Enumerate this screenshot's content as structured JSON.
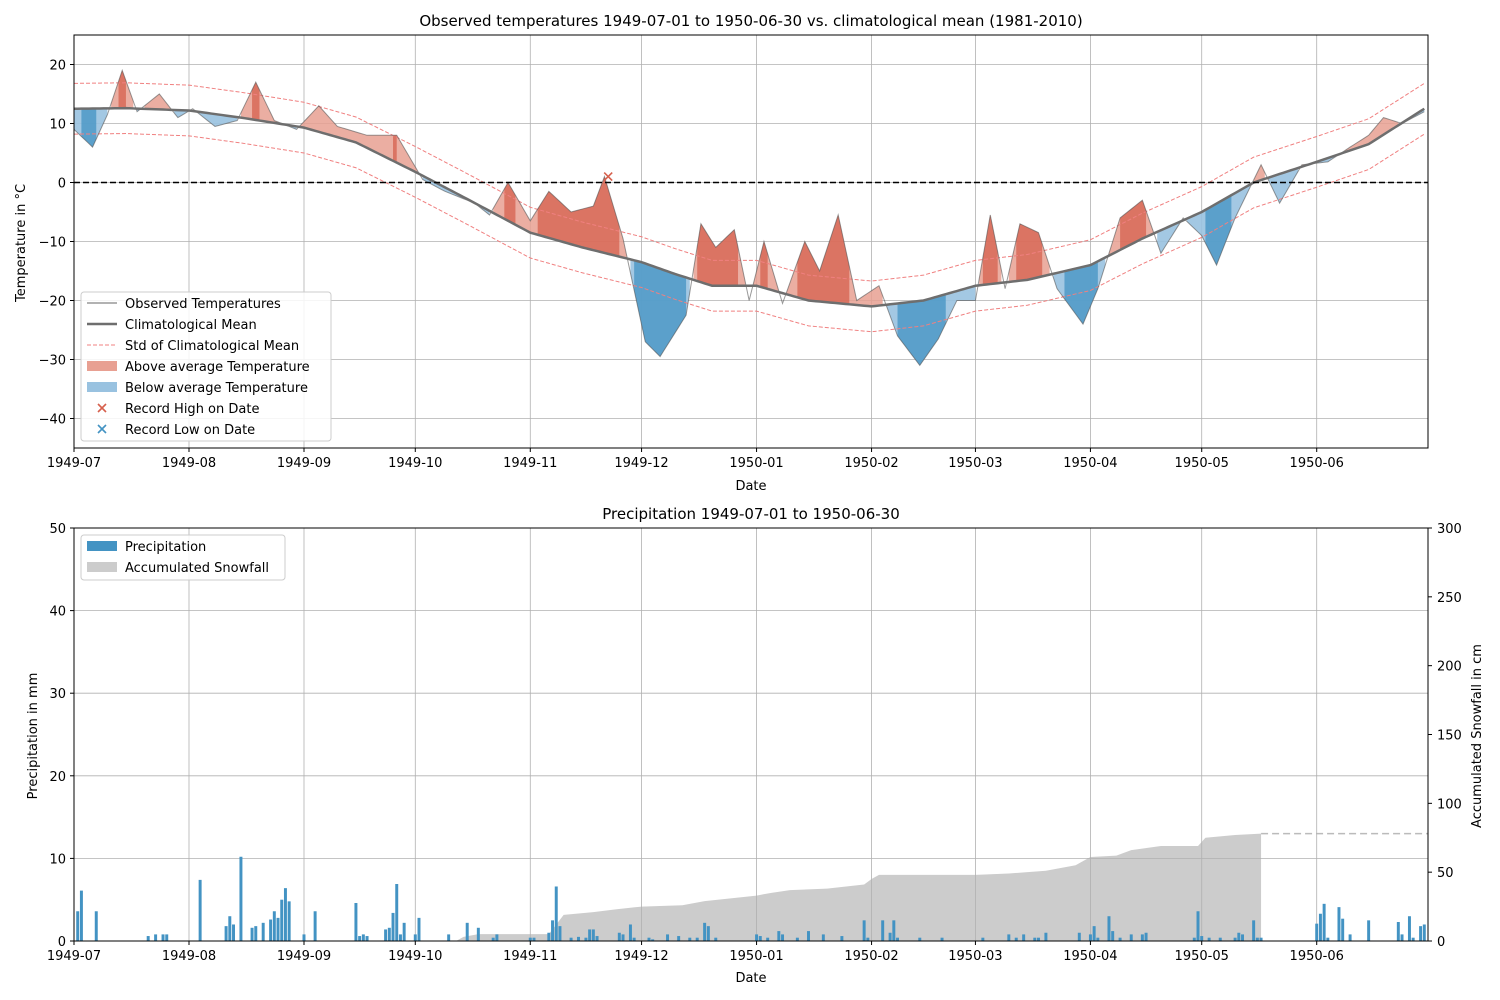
{
  "chart_data": [
    {
      "type": "area",
      "title": "Observed temperatures 1949-07-01 to 1950-06-30 vs. climatological mean (1981-2010)",
      "xlabel": "Date",
      "ylabel": "Temperature in °C",
      "xlim": [
        "1949-07-01",
        "1950-06-30"
      ],
      "ylim": [
        -45,
        25
      ],
      "x_ticks": [
        "1949-07",
        "1949-08",
        "1949-09",
        "1949-10",
        "1949-11",
        "1949-12",
        "1950-01",
        "1950-02",
        "1950-03",
        "1950-04",
        "1950-05",
        "1950-06"
      ],
      "y_ticks": [
        20,
        10,
        0,
        -10,
        -20,
        -30,
        -40
      ],
      "grid": true,
      "reference_line": 0,
      "legend_position": "lower-left",
      "legend": [
        "Observed Temperatures",
        "Climatological Mean",
        "Std of Climatological Mean",
        "Above average Temperature",
        "Below average Temperature",
        "Record High on Date",
        "Record Low on Date"
      ],
      "colors": {
        "observed": "#999999",
        "mean": "#6e6e6e",
        "std": "#f08080",
        "above": "#e8a092",
        "above_strong": "#d6604d",
        "below": "#99c2e0",
        "below_strong": "#4393c3",
        "record_high": "#d6604d",
        "record_low": "#4393c3"
      },
      "mean_points": [
        [
          "1949-07-01",
          12.5
        ],
        [
          "1949-07-15",
          12.6
        ],
        [
          "1949-08-01",
          12.2
        ],
        [
          "1949-08-15",
          11.0
        ],
        [
          "1949-09-01",
          9.3
        ],
        [
          "1949-09-15",
          6.8
        ],
        [
          "1949-10-01",
          1.8
        ],
        [
          "1949-10-15",
          -2.8
        ],
        [
          "1949-11-01",
          -8.5
        ],
        [
          "1949-11-15",
          -11.0
        ],
        [
          "1949-12-01",
          -13.5
        ],
        [
          "1949-12-10",
          -15.5
        ],
        [
          "1949-12-20",
          -17.5
        ],
        [
          "1950-01-01",
          -17.5
        ],
        [
          "1950-01-15",
          -20.0
        ],
        [
          "1950-02-01",
          -21.0
        ],
        [
          "1950-02-15",
          -20.0
        ],
        [
          "1950-03-01",
          -17.5
        ],
        [
          "1950-03-15",
          -16.5
        ],
        [
          "1950-04-01",
          -14.0
        ],
        [
          "1950-04-15",
          -9.5
        ],
        [
          "1950-05-01",
          -5.0
        ],
        [
          "1950-05-15",
          0.0
        ],
        [
          "1950-06-01",
          3.5
        ],
        [
          "1950-06-15",
          6.5
        ],
        [
          "1950-06-30",
          12.5
        ]
      ],
      "std_width": 4.3,
      "observed_points": [
        [
          "1949-07-01",
          9.0
        ],
        [
          "1949-07-06",
          6.0
        ],
        [
          "1949-07-10",
          11.5
        ],
        [
          "1949-07-14",
          19.0
        ],
        [
          "1949-07-18",
          12.0
        ],
        [
          "1949-07-24",
          15.0
        ],
        [
          "1949-07-29",
          11.0
        ],
        [
          "1949-08-02",
          12.5
        ],
        [
          "1949-08-08",
          9.5
        ],
        [
          "1949-08-14",
          10.5
        ],
        [
          "1949-08-19",
          17.0
        ],
        [
          "1949-08-24",
          10.5
        ],
        [
          "1949-08-30",
          9.0
        ],
        [
          "1949-09-05",
          13.0
        ],
        [
          "1949-09-10",
          9.5
        ],
        [
          "1949-09-18",
          8.0
        ],
        [
          "1949-09-26",
          8.0
        ],
        [
          "1949-10-03",
          0.5
        ],
        [
          "1949-10-09",
          -1.5
        ],
        [
          "1949-10-17",
          -3.5
        ],
        [
          "1949-10-21",
          -5.5
        ],
        [
          "1949-10-26",
          0.0
        ],
        [
          "1949-11-01",
          -6.5
        ],
        [
          "1949-11-06",
          -1.5
        ],
        [
          "1949-11-12",
          -5.0
        ],
        [
          "1949-11-18",
          -4.0
        ],
        [
          "1949-11-21",
          1.0
        ],
        [
          "1949-11-26",
          -9.5
        ],
        [
          "1949-12-02",
          -27.0
        ],
        [
          "1949-12-06",
          -29.5
        ],
        [
          "1949-12-13",
          -22.5
        ],
        [
          "1949-12-17",
          -7.0
        ],
        [
          "1949-12-21",
          -11.0
        ],
        [
          "1949-12-26",
          -8.0
        ],
        [
          "1949-12-30",
          -20.0
        ],
        [
          "1950-01-03",
          -10.0
        ],
        [
          "1950-01-08",
          -20.5
        ],
        [
          "1950-01-14",
          -10.0
        ],
        [
          "1950-01-18",
          -15.0
        ],
        [
          "1950-01-23",
          -5.5
        ],
        [
          "1950-01-28",
          -20.0
        ],
        [
          "1950-02-03",
          -17.5
        ],
        [
          "1950-02-08",
          -26.0
        ],
        [
          "1950-02-14",
          -31.0
        ],
        [
          "1950-02-19",
          -26.5
        ],
        [
          "1950-02-24",
          -20.0
        ],
        [
          "1950-03-01",
          -20.0
        ],
        [
          "1950-03-05",
          -5.5
        ],
        [
          "1950-03-09",
          -18.0
        ],
        [
          "1950-03-13",
          -7.0
        ],
        [
          "1950-03-18",
          -8.5
        ],
        [
          "1950-03-23",
          -18.0
        ],
        [
          "1950-03-30",
          -24.0
        ],
        [
          "1950-04-03",
          -18.0
        ],
        [
          "1950-04-09",
          -6.0
        ],
        [
          "1950-04-15",
          -3.0
        ],
        [
          "1950-04-20",
          -12.0
        ],
        [
          "1950-04-26",
          -6.0
        ],
        [
          "1950-05-01",
          -9.0
        ],
        [
          "1950-05-05",
          -14.0
        ],
        [
          "1950-05-10",
          -6.0
        ],
        [
          "1950-05-17",
          3.0
        ],
        [
          "1950-05-22",
          -3.5
        ],
        [
          "1950-05-28",
          3.0
        ],
        [
          "1950-06-04",
          3.5
        ],
        [
          "1950-06-10",
          6.0
        ],
        [
          "1950-06-15",
          8.0
        ],
        [
          "1950-06-19",
          11.0
        ],
        [
          "1950-06-24",
          10.0
        ],
        [
          "1950-06-30",
          12.0
        ]
      ],
      "record_high_points": [
        [
          "1949-11-22",
          1.0
        ]
      ],
      "record_low_points": []
    },
    {
      "type": "bar",
      "title": "Precipitation 1949-07-01 to 1950-06-30",
      "xlabel": "Date",
      "ylabel": "Precipitation in mm",
      "y2label": "Accumulated Snowfall in cm",
      "xlim": [
        "1949-07-01",
        "1950-06-30"
      ],
      "ylim": [
        0,
        50
      ],
      "y2lim": [
        0,
        300
      ],
      "x_ticks": [
        "1949-07",
        "1949-08",
        "1949-09",
        "1949-10",
        "1949-11",
        "1949-12",
        "1950-01",
        "1950-02",
        "1950-03",
        "1950-04",
        "1950-05",
        "1950-06"
      ],
      "y_ticks": [
        0,
        10,
        20,
        30,
        40,
        50
      ],
      "y2_ticks": [
        0,
        50,
        100,
        150,
        200,
        250,
        300
      ],
      "grid": true,
      "legend_position": "top-left",
      "legend": [
        "Precipitation",
        "Accumulated Snowfall"
      ],
      "colors": {
        "precipitation": "#4393c3",
        "snowfall": "#cccccc",
        "snow_dashed": "#bbbbbb"
      },
      "precipitation": [
        [
          "1949-07-02",
          3.6
        ],
        [
          "1949-07-03",
          6.1
        ],
        [
          "1949-07-07",
          3.6
        ],
        [
          "1949-07-21",
          0.6
        ],
        [
          "1949-07-23",
          0.8
        ],
        [
          "1949-07-25",
          0.8
        ],
        [
          "1949-07-26",
          0.8
        ],
        [
          "1949-08-04",
          7.4
        ],
        [
          "1949-08-11",
          1.8
        ],
        [
          "1949-08-12",
          3.0
        ],
        [
          "1949-08-13",
          2.0
        ],
        [
          "1949-08-15",
          10.2
        ],
        [
          "1949-08-18",
          1.6
        ],
        [
          "1949-08-19",
          1.8
        ],
        [
          "1949-08-21",
          2.2
        ],
        [
          "1949-08-23",
          2.6
        ],
        [
          "1949-08-24",
          3.6
        ],
        [
          "1949-08-25",
          2.8
        ],
        [
          "1949-08-26",
          5.0
        ],
        [
          "1949-08-27",
          6.4
        ],
        [
          "1949-08-28",
          4.8
        ],
        [
          "1949-09-01",
          0.8
        ],
        [
          "1949-09-04",
          3.6
        ],
        [
          "1949-09-15",
          4.6
        ],
        [
          "1949-09-16",
          0.6
        ],
        [
          "1949-09-17",
          0.8
        ],
        [
          "1949-09-18",
          0.6
        ],
        [
          "1949-09-23",
          1.4
        ],
        [
          "1949-09-24",
          1.6
        ],
        [
          "1949-09-25",
          3.4
        ],
        [
          "1949-09-26",
          6.9
        ],
        [
          "1949-09-27",
          0.8
        ],
        [
          "1949-09-28",
          2.2
        ],
        [
          "1949-10-01",
          0.8
        ],
        [
          "1949-10-02",
          2.8
        ],
        [
          "1949-10-10",
          0.8
        ],
        [
          "1949-10-15",
          2.2
        ],
        [
          "1949-10-18",
          1.6
        ],
        [
          "1949-10-22",
          0.4
        ],
        [
          "1949-10-23",
          0.8
        ],
        [
          "1949-11-01",
          0.4
        ],
        [
          "1949-11-02",
          0.4
        ],
        [
          "1949-11-06",
          1.0
        ],
        [
          "1949-11-07",
          2.5
        ],
        [
          "1949-11-08",
          6.6
        ],
        [
          "1949-11-09",
          1.8
        ],
        [
          "1949-11-12",
          0.4
        ],
        [
          "1949-11-14",
          0.5
        ],
        [
          "1949-11-16",
          0.4
        ],
        [
          "1949-11-17",
          1.4
        ],
        [
          "1949-11-18",
          1.4
        ],
        [
          "1949-11-19",
          0.6
        ],
        [
          "1949-11-25",
          1.0
        ],
        [
          "1949-11-26",
          0.8
        ],
        [
          "1949-11-28",
          2.0
        ],
        [
          "1949-11-29",
          0.4
        ],
        [
          "1949-12-03",
          0.4
        ],
        [
          "1949-12-04",
          0.2
        ],
        [
          "1949-12-08",
          0.8
        ],
        [
          "1949-12-11",
          0.6
        ],
        [
          "1949-12-14",
          0.4
        ],
        [
          "1949-12-16",
          0.4
        ],
        [
          "1949-12-18",
          2.2
        ],
        [
          "1949-12-19",
          1.8
        ],
        [
          "1949-12-21",
          0.4
        ],
        [
          "1950-01-01",
          0.8
        ],
        [
          "1950-01-02",
          0.6
        ],
        [
          "1950-01-04",
          0.4
        ],
        [
          "1950-01-07",
          1.2
        ],
        [
          "1950-01-08",
          0.8
        ],
        [
          "1950-01-12",
          0.4
        ],
        [
          "1950-01-15",
          1.2
        ],
        [
          "1950-01-19",
          0.8
        ],
        [
          "1950-01-24",
          0.6
        ],
        [
          "1950-01-30",
          2.5
        ],
        [
          "1950-01-31",
          0.4
        ],
        [
          "1950-02-04",
          2.5
        ],
        [
          "1950-02-06",
          1.0
        ],
        [
          "1950-02-07",
          2.5
        ],
        [
          "1950-02-08",
          0.4
        ],
        [
          "1950-02-14",
          0.4
        ],
        [
          "1950-02-20",
          0.4
        ],
        [
          "1950-03-03",
          0.4
        ],
        [
          "1950-03-10",
          0.8
        ],
        [
          "1950-03-12",
          0.4
        ],
        [
          "1950-03-14",
          0.8
        ],
        [
          "1950-03-17",
          0.4
        ],
        [
          "1950-03-18",
          0.4
        ],
        [
          "1950-03-20",
          1.0
        ],
        [
          "1950-03-29",
          1.0
        ],
        [
          "1950-04-01",
          0.8
        ],
        [
          "1950-04-02",
          1.8
        ],
        [
          "1950-04-03",
          0.4
        ],
        [
          "1950-04-06",
          3.0
        ],
        [
          "1950-04-07",
          1.2
        ],
        [
          "1950-04-09",
          0.4
        ],
        [
          "1950-04-12",
          0.8
        ],
        [
          "1950-04-15",
          0.8
        ],
        [
          "1950-04-16",
          1.0
        ],
        [
          "1950-04-29",
          0.4
        ],
        [
          "1950-04-30",
          3.6
        ],
        [
          "1950-05-01",
          0.6
        ],
        [
          "1950-05-03",
          0.4
        ],
        [
          "1950-05-06",
          0.4
        ],
        [
          "1950-05-10",
          0.4
        ],
        [
          "1950-05-11",
          1.0
        ],
        [
          "1950-05-12",
          0.8
        ],
        [
          "1950-05-15",
          2.5
        ],
        [
          "1950-05-16",
          0.4
        ],
        [
          "1950-05-17",
          0.4
        ],
        [
          "1950-06-01",
          2.1
        ],
        [
          "1950-06-02",
          3.3
        ],
        [
          "1950-06-03",
          4.5
        ],
        [
          "1950-06-04",
          0.4
        ],
        [
          "1950-06-07",
          4.1
        ],
        [
          "1950-06-08",
          2.7
        ],
        [
          "1950-06-10",
          0.8
        ],
        [
          "1950-06-15",
          2.5
        ],
        [
          "1950-06-23",
          2.3
        ],
        [
          "1950-06-24",
          0.8
        ],
        [
          "1950-06-26",
          3.0
        ],
        [
          "1950-06-27",
          0.4
        ],
        [
          "1950-06-29",
          1.8
        ],
        [
          "1950-06-30",
          2.0
        ]
      ],
      "snowfall_points": [
        [
          "1949-07-01",
          0
        ],
        [
          "1949-10-12",
          0
        ],
        [
          "1949-10-14",
          3
        ],
        [
          "1949-10-18",
          5
        ],
        [
          "1949-11-06",
          5
        ],
        [
          "1949-11-08",
          12
        ],
        [
          "1949-11-10",
          19
        ],
        [
          "1949-11-18",
          21
        ],
        [
          "1949-11-24",
          23
        ],
        [
          "1949-12-01",
          25
        ],
        [
          "1949-12-12",
          26
        ],
        [
          "1949-12-18",
          29
        ],
        [
          "1950-01-01",
          33
        ],
        [
          "1950-01-05",
          35
        ],
        [
          "1950-01-10",
          37
        ],
        [
          "1950-01-20",
          38
        ],
        [
          "1950-01-30",
          41
        ],
        [
          "1950-02-01",
          45
        ],
        [
          "1950-02-03",
          48
        ],
        [
          "1950-02-15",
          48
        ],
        [
          "1950-03-01",
          48
        ],
        [
          "1950-03-10",
          49
        ],
        [
          "1950-03-20",
          51
        ],
        [
          "1950-03-28",
          55
        ],
        [
          "1950-04-01",
          61
        ],
        [
          "1950-04-08",
          62
        ],
        [
          "1950-04-12",
          66
        ],
        [
          "1950-04-20",
          69
        ],
        [
          "1950-04-30",
          69
        ],
        [
          "1950-05-02",
          75
        ],
        [
          "1950-05-10",
          77
        ],
        [
          "1950-05-17",
          78
        ]
      ],
      "snowfall_last_date": "1950-05-17",
      "snowfall_projection_value": 78
    }
  ]
}
